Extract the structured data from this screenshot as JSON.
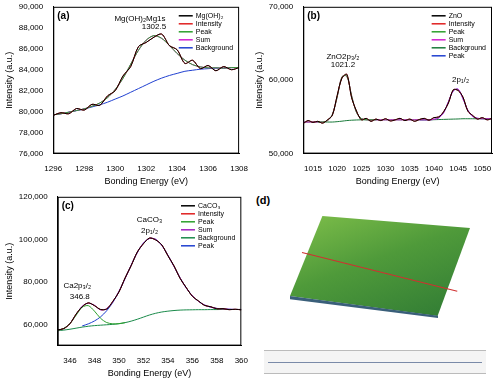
{
  "chart_data": [
    {
      "type": "line",
      "title": "(a)",
      "x_label": "Bonding Energy (eV)",
      "y_label": "Intensity (a.u.)",
      "xlim": [
        1296,
        1308
      ],
      "xticks": [
        1296,
        1298,
        1300,
        1302,
        1304,
        1306,
        1308
      ],
      "ylim": [
        76000,
        90000
      ],
      "yticks": [
        {
          "value": 76000,
          "label": "76,000"
        },
        {
          "value": 78000,
          "label": "78,000"
        },
        {
          "value": 80000,
          "label": "80,000"
        },
        {
          "value": 82000,
          "label": "82,000"
        },
        {
          "value": 84000,
          "label": "84,000"
        },
        {
          "value": 86000,
          "label": "86,000"
        },
        {
          "value": 88000,
          "label": "88,000"
        },
        {
          "value": 90000,
          "label": "90,000"
        }
      ],
      "grid": false,
      "legend": "upper right",
      "annotations": [
        {
          "text": "Mg(OH)₂Mg1s",
          "x": 1301.6,
          "y": 88900
        },
        {
          "text": "1302.5",
          "x": 1302.5,
          "y": 88100
        }
      ],
      "x": [
        1296,
        1296.5,
        1297,
        1297.5,
        1298,
        1298.5,
        1299,
        1299.5,
        1300,
        1300.5,
        1301,
        1301.5,
        1302,
        1302.5,
        1303,
        1303.5,
        1304,
        1304.5,
        1305,
        1305.5,
        1306,
        1306.5,
        1307,
        1307.5,
        1308
      ],
      "series": [
        {
          "name": "Mg(OH)₂",
          "color": "#000000",
          "values": [
            79650,
            79900,
            79800,
            80300,
            80150,
            80700,
            80600,
            81500,
            82000,
            83400,
            84300,
            86200,
            86600,
            87100,
            87400,
            86300,
            85900,
            84600,
            84900,
            84100,
            84400,
            83900,
            84300,
            84000,
            84200
          ]
        },
        {
          "name": "Intensity",
          "color": "#e02020",
          "values": [
            79650,
            79900,
            79800,
            80300,
            80150,
            80700,
            80600,
            81500,
            82000,
            83400,
            84300,
            86200,
            86600,
            87100,
            87400,
            86300,
            85900,
            84600,
            84900,
            84100,
            84400,
            83900,
            84300,
            84000,
            84200
          ]
        },
        {
          "name": "Peak",
          "color": "#2ca02c",
          "values": [
            79700,
            79800,
            79950,
            80105,
            80270,
            80510,
            80825,
            81330,
            82120,
            83170,
            84530,
            85850,
            86820,
            87250,
            86990,
            86310,
            85540,
            84910,
            84480,
            84270,
            84175,
            84180,
            84150,
            84200,
            84200
          ]
        },
        {
          "name": "Sum",
          "color": "#d020d0",
          "values": [
            79700,
            79800,
            79950,
            80105,
            80270,
            80510,
            80825,
            81330,
            82120,
            83170,
            84530,
            85850,
            86820,
            87250,
            86990,
            86310,
            85540,
            84910,
            84480,
            84270,
            84175,
            84180,
            84150,
            84200,
            84200
          ]
        },
        {
          "name": "Background",
          "color": "#2040d0",
          "values": [
            79700,
            79800,
            79950,
            80100,
            80250,
            80450,
            80650,
            80900,
            81200,
            81500,
            81850,
            82200,
            82550,
            82900,
            83200,
            83450,
            83650,
            83850,
            83950,
            84050,
            84100,
            84150,
            84150,
            84200,
            84200
          ]
        }
      ]
    },
    {
      "type": "line",
      "title": "(b)",
      "x_label": "Bonding Energy (eV)",
      "y_label": "Intensity (a.u.)",
      "xlim": [
        1013,
        1052
      ],
      "xticks": [
        1015,
        1020,
        1025,
        1030,
        1035,
        1040,
        1045,
        1050
      ],
      "ylim": [
        50000,
        70000
      ],
      "yticks": [
        {
          "value": 50000,
          "label": "50,000"
        },
        {
          "value": 60000,
          "label": "60,000"
        },
        {
          "value": 70000,
          "label": "70,000"
        }
      ],
      "grid": false,
      "legend": "upper right",
      "annotations": [
        {
          "text": "ZnO2p₃/₂",
          "x": 1021.2,
          "y": 63200
        },
        {
          "text": "1021.2",
          "x": 1021.2,
          "y": 62100
        },
        {
          "text": "2p₁/₂",
          "x": 1045.5,
          "y": 60000
        }
      ],
      "x": [
        1013,
        1014,
        1015,
        1016,
        1017,
        1018,
        1019,
        1020,
        1021,
        1022,
        1023,
        1024,
        1025,
        1026,
        1027,
        1028,
        1029,
        1030,
        1031,
        1032,
        1033,
        1034,
        1035,
        1036,
        1037,
        1038,
        1039,
        1040,
        1041,
        1042,
        1043,
        1044,
        1045,
        1046,
        1047,
        1048,
        1049,
        1050,
        1051,
        1052
      ],
      "series": [
        {
          "name": "ZnO",
          "color": "#000000",
          "values": [
            54100,
            54500,
            54250,
            54400,
            54150,
            54600,
            55200,
            57900,
            60300,
            60800,
            57600,
            55800,
            54600,
            54800,
            54400,
            54700,
            54500,
            54750,
            54450,
            54600,
            54800,
            54500,
            54700,
            54400,
            54650,
            54800,
            54550,
            54900,
            55000,
            55700,
            56900,
            58700,
            58600,
            57700,
            55800,
            55200,
            54700,
            54900,
            54600,
            54800
          ]
        },
        {
          "name": "Intensity",
          "color": "#e02020",
          "values": [
            54100,
            54500,
            54250,
            54400,
            54150,
            54600,
            55200,
            57900,
            60300,
            60800,
            57600,
            55800,
            54600,
            54800,
            54400,
            54700,
            54500,
            54750,
            54450,
            54600,
            54800,
            54500,
            54700,
            54400,
            54650,
            54800,
            54550,
            54900,
            55000,
            55700,
            56900,
            58700,
            58600,
            57700,
            55800,
            55200,
            54700,
            54900,
            54600,
            54800
          ]
        },
        {
          "name": "Peak",
          "color": "#2ca02c",
          "values": [
            null,
            null,
            null,
            54300,
            54300,
            54480,
            55320,
            57670,
            60470,
            60550,
            57870,
            55600,
            54780,
            54620,
            54600,
            54600,
            null,
            null,
            null,
            null,
            null,
            null,
            null,
            null,
            null,
            null,
            null,
            null,
            null,
            null,
            null,
            null,
            null,
            null,
            null,
            null,
            null,
            null,
            null,
            null
          ]
        },
        {
          "name": "Sum",
          "color": "#d020d0",
          "values": [
            54300,
            54300,
            54300,
            54300,
            54300,
            54480,
            55320,
            57670,
            60470,
            60550,
            57870,
            55600,
            54780,
            54620,
            54600,
            54600,
            54600,
            54600,
            54600,
            54600,
            54600,
            54600,
            54600,
            54600,
            54600,
            54600,
            54600,
            54660,
            54875,
            55580,
            57070,
            58560,
            58770,
            57480,
            55930,
            55070,
            54810,
            54750,
            54750,
            54750
          ]
        },
        {
          "name": "Background",
          "color": "#1a7a3a",
          "values": [
            54300,
            54300,
            54300,
            54300,
            54300,
            54300,
            54300,
            54350,
            54420,
            54500,
            54550,
            54580,
            54600,
            54600,
            54600,
            54600,
            54600,
            54600,
            54600,
            54600,
            54600,
            54600,
            54600,
            54600,
            54600,
            54600,
            54600,
            54620,
            54640,
            54660,
            54680,
            54700,
            54720,
            54750,
            54750,
            54750,
            54750,
            54750,
            54750,
            54750
          ]
        },
        {
          "name": "Peak",
          "color": "#2040d0",
          "values": [
            null,
            null,
            null,
            null,
            null,
            null,
            null,
            null,
            null,
            null,
            null,
            null,
            null,
            null,
            null,
            null,
            null,
            null,
            null,
            null,
            null,
            null,
            null,
            null,
            54600,
            54600,
            54600,
            54660,
            54875,
            55580,
            57070,
            58560,
            58770,
            57480,
            55930,
            55070,
            54810,
            54750,
            54750,
            54750
          ]
        }
      ]
    },
    {
      "type": "line",
      "title": "(c)",
      "x_label": "Bonding Energy (eV)",
      "y_label": "Intensity (a.u.)",
      "xlim": [
        345,
        360
      ],
      "xticks": [
        346,
        348,
        350,
        352,
        354,
        356,
        358,
        360
      ],
      "ylim": [
        50000,
        120000
      ],
      "yticks": [
        {
          "value": 60000,
          "label": "60,000"
        },
        {
          "value": 80000,
          "label": "80,000"
        },
        {
          "value": 100000,
          "label": "100,000"
        },
        {
          "value": 120000,
          "label": "120,000"
        }
      ],
      "grid": false,
      "legend": "upper right",
      "annotations": [
        {
          "text": "CaCO₃",
          "x": 352.5,
          "y": 109000
        },
        {
          "text": "2p₁/₂",
          "x": 352.5,
          "y": 104000
        },
        {
          "text": "Ca2p₃/₂",
          "x": 346.6,
          "y": 78000
        },
        {
          "text": "346.8",
          "x": 346.8,
          "y": 73000
        }
      ],
      "x": [
        345,
        345.5,
        346,
        346.5,
        347,
        347.5,
        348,
        348.5,
        349,
        349.5,
        350,
        350.5,
        351,
        351.5,
        352,
        352.5,
        353,
        353.5,
        354,
        354.5,
        355,
        355.5,
        356,
        356.5,
        357,
        357.5,
        358,
        358.5,
        359,
        359.5,
        360
      ],
      "series": [
        {
          "name": "CaCO₃",
          "color": "#000000",
          "values": [
            57400,
            58000,
            60300,
            64800,
            68300,
            70100,
            68800,
            67000,
            67200,
            70800,
            75200,
            81800,
            87600,
            94000,
            97900,
            100600,
            99700,
            97400,
            92300,
            87500,
            81600,
            77300,
            73200,
            71000,
            68900,
            68300,
            67300,
            67400,
            66900,
            67100,
            66800
          ]
        },
        {
          "name": "Intensity",
          "color": "#e02020",
          "values": [
            57400,
            58000,
            60300,
            64800,
            68300,
            70100,
            68800,
            67000,
            67200,
            70800,
            75200,
            81800,
            87600,
            94000,
            97900,
            100600,
            99700,
            97400,
            92300,
            87500,
            81600,
            77300,
            73200,
            71000,
            68900,
            68300,
            67300,
            67400,
            66900,
            67100,
            66800
          ]
        },
        {
          "name": "Peak",
          "color": "#2ca02c",
          "values": [
            57160,
            58100,
            60370,
            64270,
            68020,
            68790,
            66220,
            62850,
            60850,
            60230,
            60330,
            60800,
            null,
            null,
            null,
            null,
            null,
            null,
            null,
            null,
            null,
            null,
            null,
            null,
            null,
            null,
            null,
            null,
            null,
            null,
            null
          ]
        },
        {
          "name": "Sum",
          "color": "#a020c0",
          "values": [
            57160,
            58100,
            60470,
            64515,
            68560,
            69920,
            69000,
            66770,
            67440,
            70530,
            75480,
            81500,
            87850,
            93750,
            98180,
            100400,
            99980,
            97150,
            92550,
            87200,
            81850,
            77100,
            73440,
            70820,
            69080,
            68080,
            67490,
            67245,
            67100,
            67000,
            67000
          ]
        },
        {
          "name": "Background",
          "color": "#1a8a4a",
          "values": [
            57000,
            57300,
            57700,
            58200,
            58700,
            59100,
            59400,
            59600,
            59800,
            60000,
            60300,
            60800,
            61500,
            62400,
            63400,
            64400,
            65200,
            65800,
            66200,
            66500,
            66700,
            66800,
            66850,
            66900,
            66900,
            66950,
            66950,
            67000,
            67000,
            67000,
            67000
          ]
        },
        {
          "name": "Peak",
          "color": "#2040d0",
          "values": [
            null,
            null,
            null,
            null,
            59240,
            60230,
            61580,
            63520,
            66390,
            70300,
            75450,
            81500,
            87850,
            93750,
            98180,
            100400,
            99980,
            97150,
            92550,
            87200,
            81850,
            77100,
            73440,
            70820,
            69080,
            68080,
            67490,
            67245,
            67100,
            67000,
            67000
          ]
        }
      ]
    }
  ],
  "image": {
    "label": "(d)"
  }
}
